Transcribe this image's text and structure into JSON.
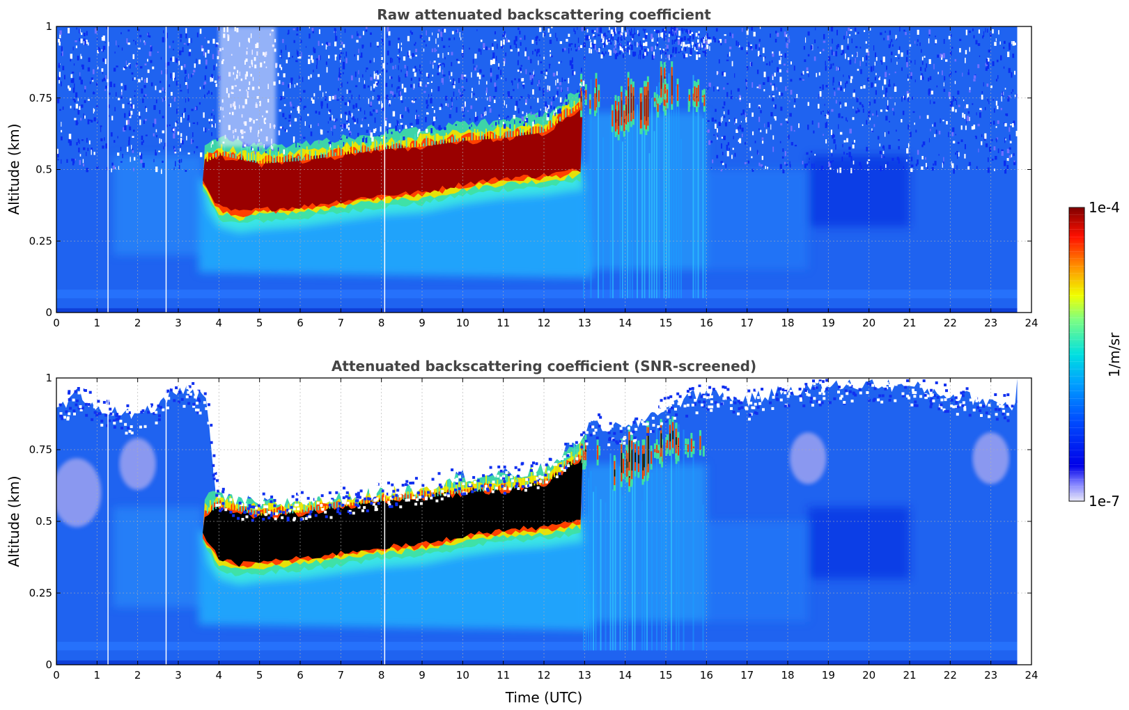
{
  "chart_data": [
    {
      "type": "heatmap",
      "title": "Raw attenuated backscattering coefficient",
      "xlabel": "",
      "ylabel": "Altitude (km)",
      "xlim": [
        0,
        24
      ],
      "ylim": [
        0,
        1
      ],
      "xticks": [
        "0",
        "1",
        "2",
        "3",
        "4",
        "5",
        "6",
        "7",
        "8",
        "9",
        "10",
        "11",
        "12",
        "13",
        "14",
        "15",
        "16",
        "17",
        "18",
        "19",
        "20",
        "21",
        "22",
        "23",
        "24"
      ],
      "yticks": [
        "0",
        "0.25",
        "0.5",
        "0.75",
        "1"
      ],
      "grid": true,
      "data_end_time": 23.65,
      "gap_times": [
        1.27,
        2.7,
        8.08
      ],
      "features": {
        "noise_above_boundary_layer": true,
        "layer_base": [
          [
            3.6,
            0.46
          ],
          [
            4,
            0.37
          ],
          [
            4.5,
            0.35
          ],
          [
            5,
            0.36
          ],
          [
            6,
            0.37
          ],
          [
            7,
            0.39
          ],
          [
            8,
            0.41
          ],
          [
            9,
            0.42
          ],
          [
            10,
            0.45
          ],
          [
            11,
            0.47
          ],
          [
            12,
            0.48
          ],
          [
            12.9,
            0.5
          ]
        ],
        "layer_top": [
          [
            3.6,
            0.52
          ],
          [
            4,
            0.55
          ],
          [
            5,
            0.52
          ],
          [
            6,
            0.53
          ],
          [
            7,
            0.55
          ],
          [
            8,
            0.57
          ],
          [
            9,
            0.58
          ],
          [
            10,
            0.6
          ],
          [
            11,
            0.61
          ],
          [
            12,
            0.63
          ],
          [
            12.9,
            0.72
          ]
        ],
        "cloud_tufts": [
          [
            13.1,
            0.68,
            0.84
          ],
          [
            13.9,
            0.6,
            0.8
          ],
          [
            14.3,
            0.62,
            0.86
          ],
          [
            14.8,
            0.68,
            0.82
          ],
          [
            15.1,
            0.7,
            0.88
          ],
          [
            15.7,
            0.7,
            0.82
          ]
        ]
      }
    },
    {
      "type": "heatmap",
      "title": "Attenuated backscattering coefficient (SNR-screened)",
      "xlabel": "Time (UTC)",
      "ylabel": "Altitude (km)",
      "xlim": [
        0,
        24
      ],
      "ylim": [
        0,
        1
      ],
      "xticks": [
        "0",
        "1",
        "2",
        "3",
        "4",
        "5",
        "6",
        "7",
        "8",
        "9",
        "10",
        "11",
        "12",
        "13",
        "14",
        "15",
        "16",
        "17",
        "18",
        "19",
        "20",
        "21",
        "22",
        "23",
        "24"
      ],
      "yticks": [
        "0",
        "0.25",
        "0.5",
        "0.75",
        "1"
      ],
      "grid": true,
      "data_end_time": 23.65,
      "gap_times": [
        1.27,
        2.7,
        8.08
      ],
      "screen_top": [
        [
          0,
          0.88
        ],
        [
          0.5,
          0.95
        ],
        [
          1,
          0.9
        ],
        [
          1.5,
          0.88
        ],
        [
          2,
          0.86
        ],
        [
          2.5,
          0.9
        ],
        [
          3,
          0.97
        ],
        [
          3.7,
          0.92
        ],
        [
          3.9,
          0.62
        ],
        [
          4,
          0.58
        ],
        [
          5,
          0.56
        ],
        [
          6,
          0.57
        ],
        [
          7,
          0.58
        ],
        [
          8,
          0.6
        ],
        [
          9,
          0.62
        ],
        [
          10,
          0.66
        ],
        [
          11,
          0.66
        ],
        [
          12,
          0.68
        ],
        [
          12.8,
          0.78
        ],
        [
          13.2,
          0.84
        ],
        [
          14,
          0.82
        ],
        [
          15,
          0.9
        ],
        [
          15.9,
          0.95
        ],
        [
          16,
          0.95
        ],
        [
          17,
          0.92
        ],
        [
          18,
          0.96
        ],
        [
          19,
          0.97
        ],
        [
          20,
          0.98
        ],
        [
          21,
          0.97
        ],
        [
          22,
          0.94
        ],
        [
          23,
          0.92
        ],
        [
          23.65,
          0.9
        ]
      ],
      "features": {
        "saturated_layer_color": "#000000"
      }
    }
  ],
  "colorbar": {
    "max_label": "1e-4",
    "min_label": "1e-7",
    "unit_label": "1/m/sr",
    "colormap": "jet",
    "low_end_color": "#e8e8f8"
  }
}
